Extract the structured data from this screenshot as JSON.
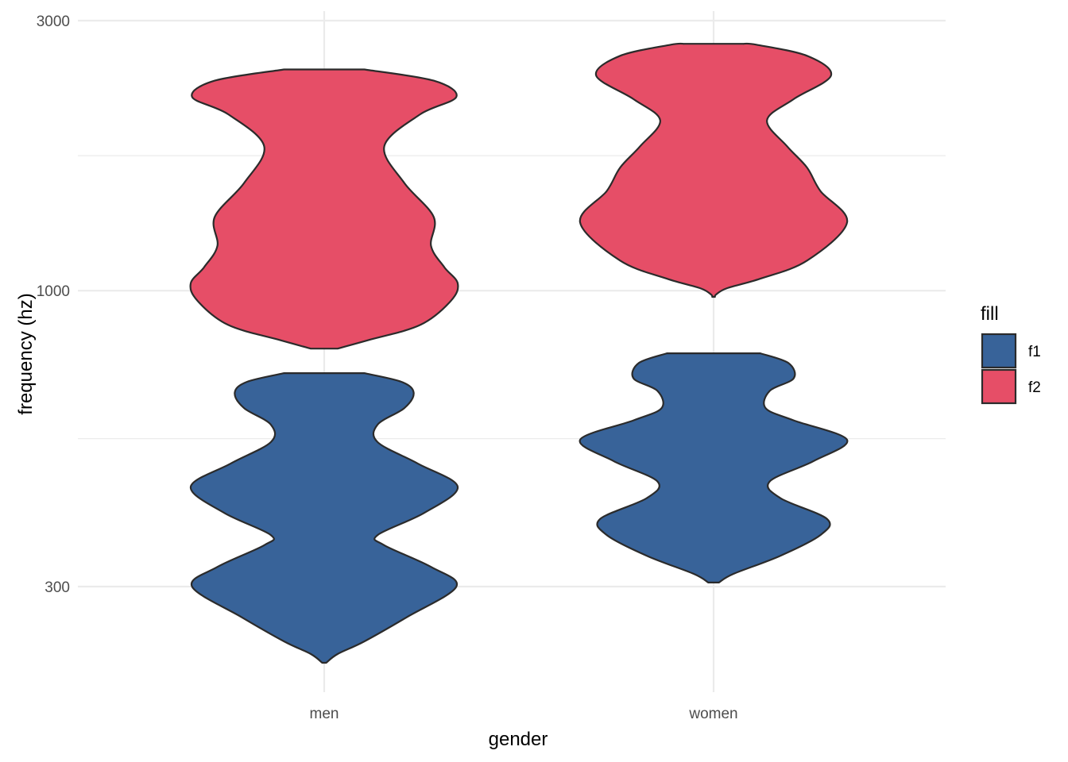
{
  "chart_data": {
    "type": "violin",
    "xlabel": "gender",
    "ylabel": "frequency (hz)",
    "y_scale": "log10",
    "ylim": [
      205,
      3200
    ],
    "y_ticks": [
      300,
      1000,
      3000
    ],
    "y_tick_labels": [
      "300",
      "1000",
      "3000"
    ],
    "categories": [
      "men",
      "women"
    ],
    "grid": true,
    "legend": {
      "title": "fill",
      "position": "right",
      "items": [
        "f1",
        "f2"
      ]
    },
    "colors": {
      "f1": "#386399",
      "f2": "#e64e67",
      "outline": "#2b2b2b"
    },
    "series": [
      {
        "name": "f1",
        "color": "#386399",
        "violins": [
          {
            "category": "men",
            "profile": [
              [
                220,
                0.015
              ],
              [
                228,
                0.1
              ],
              [
                240,
                0.3
              ],
              [
                265,
                0.62
              ],
              [
                300,
                0.99
              ],
              [
                325,
                0.8
              ],
              [
                355,
                0.45
              ],
              [
                370,
                0.4
              ],
              [
                405,
                0.75
              ],
              [
                450,
                1.0
              ],
              [
                495,
                0.7
              ],
              [
                540,
                0.4
              ],
              [
                580,
                0.4
              ],
              [
                620,
                0.6
              ],
              [
                660,
                0.67
              ],
              [
                690,
                0.58
              ],
              [
                715,
                0.3
              ]
            ]
          },
          {
            "category": "women",
            "profile": [
              [
                305,
                0.04
              ],
              [
                316,
                0.15
              ],
              [
                340,
                0.5
              ],
              [
                370,
                0.8
              ],
              [
                395,
                0.85
              ],
              [
                430,
                0.5
              ],
              [
                460,
                0.42
              ],
              [
                500,
                0.75
              ],
              [
                545,
                1.0
              ],
              [
                590,
                0.6
              ],
              [
                620,
                0.39
              ],
              [
                665,
                0.42
              ],
              [
                700,
                0.6
              ],
              [
                745,
                0.56
              ],
              [
                775,
                0.35
              ]
            ]
          }
        ]
      },
      {
        "name": "f2",
        "color": "#e64e67",
        "violins": [
          {
            "category": "men",
            "profile": [
              [
                790,
                0.1
              ],
              [
                820,
                0.35
              ],
              [
                870,
                0.72
              ],
              [
                960,
                0.95
              ],
              [
                1030,
                1.0
              ],
              [
                1100,
                0.9
              ],
              [
                1200,
                0.8
              ],
              [
                1350,
                0.82
              ],
              [
                1550,
                0.6
              ],
              [
                1800,
                0.45
              ],
              [
                2050,
                0.72
              ],
              [
                2200,
                0.99
              ],
              [
                2350,
                0.82
              ],
              [
                2460,
                0.3
              ]
            ]
          },
          {
            "category": "women",
            "profile": [
              [
                975,
                0.01
              ],
              [
                985,
                0.02
              ],
              [
                1010,
                0.1
              ],
              [
                1050,
                0.35
              ],
              [
                1130,
                0.7
              ],
              [
                1320,
                1.0
              ],
              [
                1500,
                0.8
              ],
              [
                1650,
                0.7
              ],
              [
                1800,
                0.55
              ],
              [
                2000,
                0.4
              ],
              [
                2180,
                0.6
              ],
              [
                2400,
                0.88
              ],
              [
                2600,
                0.7
              ],
              [
                2720,
                0.32
              ],
              [
                2730,
                0.22
              ]
            ]
          }
        ]
      }
    ]
  }
}
